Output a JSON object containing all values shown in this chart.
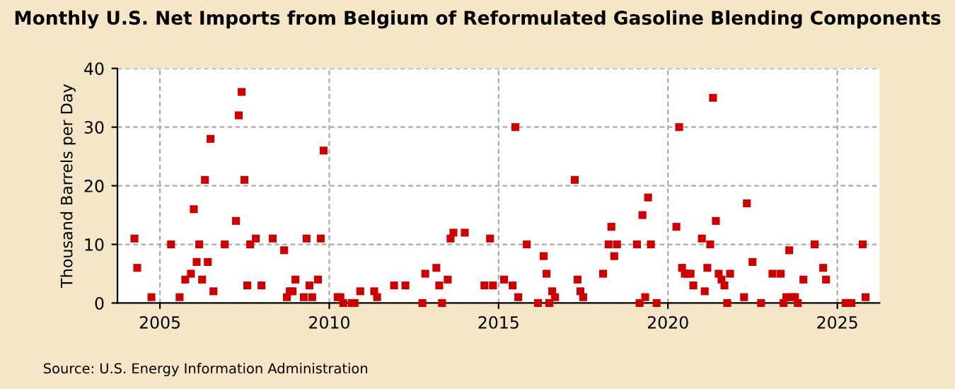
{
  "chart_data": {
    "type": "scatter",
    "title": "Monthly U.S. Net Imports from Belgium of Reformulated Gasoline Blending Components",
    "ylabel": "Thousand Barrels per Day",
    "annotations": [
      "Source: U.S. Energy Information Administration"
    ],
    "x": [
      "2004-04",
      "2004-05",
      "2004-10",
      "2005-05",
      "2005-08",
      "2005-10",
      "2005-12",
      "2006-01",
      "2006-02",
      "2006-03",
      "2006-04",
      "2006-05",
      "2006-06",
      "2006-07",
      "2006-08",
      "2006-12",
      "2007-04",
      "2007-05",
      "2007-06",
      "2007-07",
      "2007-08",
      "2007-09",
      "2007-11",
      "2008-01",
      "2008-05",
      "2008-09",
      "2008-10",
      "2008-11",
      "2008-12",
      "2009-01",
      "2009-04",
      "2009-05",
      "2009-06",
      "2009-07",
      "2009-09",
      "2009-10",
      "2009-11",
      "2010-04",
      "2010-05",
      "2010-06",
      "2010-09",
      "2010-10",
      "2010-12",
      "2011-05",
      "2011-06",
      "2011-12",
      "2012-04",
      "2012-10",
      "2012-11",
      "2013-03",
      "2013-04",
      "2013-05",
      "2013-07",
      "2013-08",
      "2013-09",
      "2014-01",
      "2014-08",
      "2014-10",
      "2014-11",
      "2015-03",
      "2015-06",
      "2015-07",
      "2015-08",
      "2015-11",
      "2016-03",
      "2016-05",
      "2016-06",
      "2016-07",
      "2016-08",
      "2016-09",
      "2017-04",
      "2017-05",
      "2017-06",
      "2017-07",
      "2018-02",
      "2018-04",
      "2018-05",
      "2018-06",
      "2018-07",
      "2019-02",
      "2019-03",
      "2019-04",
      "2019-05",
      "2019-06",
      "2019-07",
      "2019-09",
      "2020-04",
      "2020-05",
      "2020-06",
      "2020-07",
      "2020-08",
      "2020-09",
      "2020-10",
      "2021-01",
      "2021-02",
      "2021-03",
      "2021-04",
      "2021-05",
      "2021-06",
      "2021-07",
      "2021-08",
      "2021-09",
      "2021-10",
      "2021-11",
      "2022-04",
      "2022-05",
      "2022-07",
      "2022-10",
      "2023-02",
      "2023-05",
      "2023-06",
      "2023-07",
      "2023-08",
      "2023-09",
      "2023-10",
      "2023-11",
      "2024-01",
      "2024-05",
      "2024-08",
      "2024-09",
      "2025-04",
      "2025-05",
      "2025-06",
      "2025-10",
      "2025-11"
    ],
    "series": [
      {
        "color": "#cc0000",
        "values": [
          11,
          6,
          1,
          10,
          1,
          4,
          5,
          16,
          7,
          10,
          4,
          21,
          7,
          28,
          2,
          10,
          14,
          32,
          36,
          21,
          3,
          10,
          11,
          3,
          11,
          9,
          1,
          2,
          2,
          4,
          1,
          11,
          3,
          1,
          4,
          11,
          26,
          1,
          1,
          0,
          0,
          0,
          2,
          2,
          1,
          3,
          3,
          0,
          5,
          6,
          3,
          0,
          4,
          11,
          12,
          12,
          3,
          11,
          3,
          4,
          3,
          30,
          1,
          10,
          0,
          8,
          5,
          0,
          2,
          1,
          21,
          4,
          2,
          1,
          5,
          10,
          13,
          8,
          10,
          10,
          0,
          15,
          1,
          18,
          10,
          0,
          13,
          30,
          6,
          5,
          5,
          5,
          3,
          11,
          2,
          6,
          10,
          35,
          14,
          5,
          4,
          3,
          0,
          5,
          1,
          17,
          7,
          0,
          5,
          5,
          0,
          1,
          9,
          1,
          1,
          0,
          4,
          10,
          6,
          4,
          0,
          0,
          0,
          10,
          1
        ]
      }
    ],
    "xlim": [
      "2003-10",
      "2026-04"
    ],
    "xticks": [
      "2005",
      "2010",
      "2015",
      "2020",
      "2025"
    ],
    "ylim": [
      0,
      40
    ],
    "yticks": [
      0,
      10,
      20,
      30,
      40
    ],
    "grid": true,
    "marker": "square"
  }
}
